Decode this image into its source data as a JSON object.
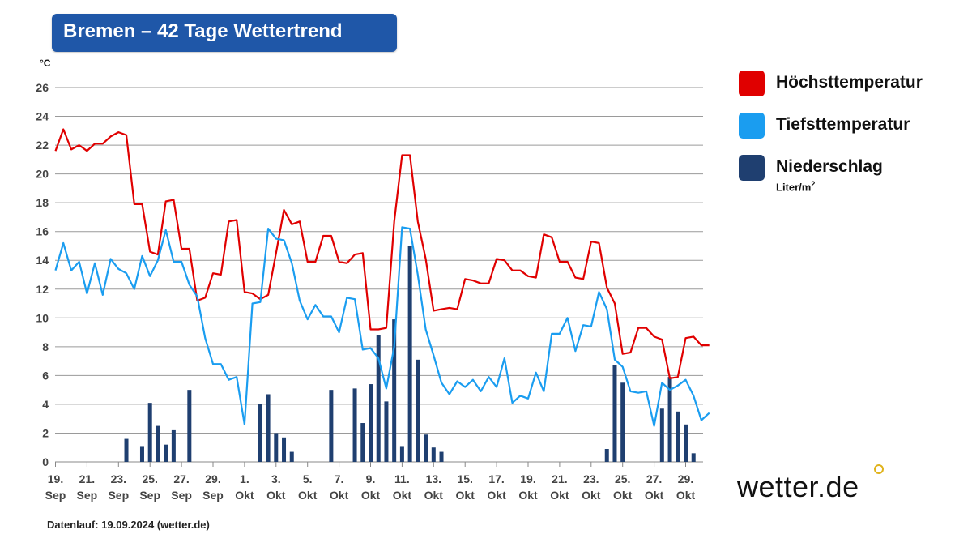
{
  "header": {
    "title": "Bremen – 42 Tage Wettertrend"
  },
  "footer": {
    "text": "Datenlauf: 19.09.2024 (wetter.de)"
  },
  "logo": {
    "text": "wetter.de"
  },
  "legend": {
    "items": [
      {
        "label": "Höchsttemperatur",
        "color": "#e00000"
      },
      {
        "label": "Tiefsttemperatur",
        "color": "#1a9df0"
      },
      {
        "label": "Niederschlag",
        "color": "#1f3f70",
        "unit": "Liter/m",
        "unit_sup": "2"
      }
    ]
  },
  "chart_data": {
    "type": "line",
    "yunit": "°C",
    "ylim": [
      0,
      26
    ],
    "yticks": [
      0,
      2,
      4,
      6,
      8,
      10,
      12,
      14,
      16,
      18,
      20,
      22,
      24,
      26
    ],
    "grid": true,
    "legend_position": "right",
    "x_start_date": "2024-09-19",
    "x_ticks": [
      {
        "day": 0,
        "top": "19.",
        "bottom": "Sep"
      },
      {
        "day": 2,
        "top": "21.",
        "bottom": "Sep"
      },
      {
        "day": 4,
        "top": "23.",
        "bottom": "Sep"
      },
      {
        "day": 6,
        "top": "25.",
        "bottom": "Sep"
      },
      {
        "day": 8,
        "top": "27.",
        "bottom": "Sep"
      },
      {
        "day": 10,
        "top": "29.",
        "bottom": "Sep"
      },
      {
        "day": 12,
        "top": "1.",
        "bottom": "Okt"
      },
      {
        "day": 14,
        "top": "3.",
        "bottom": "Okt"
      },
      {
        "day": 16,
        "top": "5.",
        "bottom": "Okt"
      },
      {
        "day": 18,
        "top": "7.",
        "bottom": "Okt"
      },
      {
        "day": 20,
        "top": "9.",
        "bottom": "Okt"
      },
      {
        "day": 22,
        "top": "11.",
        "bottom": "Okt"
      },
      {
        "day": 24,
        "top": "13.",
        "bottom": "Okt"
      },
      {
        "day": 26,
        "top": "15.",
        "bottom": "Okt"
      },
      {
        "day": 28,
        "top": "17.",
        "bottom": "Okt"
      },
      {
        "day": 30,
        "top": "19.",
        "bottom": "Okt"
      },
      {
        "day": 32,
        "top": "21.",
        "bottom": "Okt"
      },
      {
        "day": 34,
        "top": "23.",
        "bottom": "Okt"
      },
      {
        "day": 36,
        "top": "25.",
        "bottom": "Okt"
      },
      {
        "day": 38,
        "top": "27.",
        "bottom": "Okt"
      },
      {
        "day": 40,
        "top": "29.",
        "bottom": "Okt"
      }
    ],
    "series": [
      {
        "name": "Höchsttemperatur",
        "color": "#e00000",
        "points": [
          [
            0,
            21.6
          ],
          [
            0.5,
            23.1
          ],
          [
            1,
            21.7
          ],
          [
            1.5,
            22.0
          ],
          [
            2,
            21.6
          ],
          [
            2.5,
            22.1
          ],
          [
            3,
            22.1
          ],
          [
            3.5,
            22.6
          ],
          [
            4,
            22.9
          ],
          [
            4.5,
            22.7
          ],
          [
            5,
            17.9
          ],
          [
            5.5,
            17.9
          ],
          [
            6,
            14.6
          ],
          [
            6.5,
            14.4
          ],
          [
            7,
            18.1
          ],
          [
            7.5,
            18.2
          ],
          [
            8,
            14.8
          ],
          [
            8.5,
            14.8
          ],
          [
            9,
            11.2
          ],
          [
            9.5,
            11.4
          ],
          [
            10,
            13.1
          ],
          [
            10.5,
            13.0
          ],
          [
            11,
            16.7
          ],
          [
            11.5,
            16.8
          ],
          [
            12,
            11.8
          ],
          [
            12.5,
            11.7
          ],
          [
            13,
            11.3
          ],
          [
            13.5,
            11.6
          ],
          [
            14,
            14.5
          ],
          [
            14.5,
            17.5
          ],
          [
            15,
            16.5
          ],
          [
            15.5,
            16.7
          ],
          [
            16,
            13.9
          ],
          [
            16.5,
            13.9
          ],
          [
            17,
            15.7
          ],
          [
            17.5,
            15.7
          ],
          [
            18,
            13.9
          ],
          [
            18.5,
            13.8
          ],
          [
            19,
            14.4
          ],
          [
            19.5,
            14.5
          ],
          [
            20,
            9.2
          ],
          [
            20.5,
            9.2
          ],
          [
            21,
            9.3
          ],
          [
            21.5,
            16.7
          ],
          [
            22,
            21.3
          ],
          [
            22.5,
            21.3
          ],
          [
            23,
            16.7
          ],
          [
            23.5,
            14.1
          ],
          [
            24,
            10.5
          ],
          [
            24.5,
            10.6
          ],
          [
            25,
            10.7
          ],
          [
            25.5,
            10.6
          ],
          [
            26,
            12.7
          ],
          [
            26.5,
            12.6
          ],
          [
            27,
            12.4
          ],
          [
            27.5,
            12.4
          ],
          [
            28,
            14.1
          ],
          [
            28.5,
            14.0
          ],
          [
            29,
            13.3
          ],
          [
            29.5,
            13.3
          ],
          [
            30,
            12.9
          ],
          [
            30.5,
            12.8
          ],
          [
            31,
            15.8
          ],
          [
            31.5,
            15.6
          ],
          [
            32,
            13.9
          ],
          [
            32.5,
            13.9
          ],
          [
            33,
            12.8
          ],
          [
            33.5,
            12.7
          ],
          [
            34,
            15.3
          ],
          [
            34.5,
            15.2
          ],
          [
            35,
            12.1
          ],
          [
            35.5,
            11.0
          ],
          [
            36,
            7.5
          ],
          [
            36.5,
            7.6
          ],
          [
            37,
            9.3
          ],
          [
            37.5,
            9.3
          ],
          [
            38,
            8.7
          ],
          [
            38.5,
            8.5
          ],
          [
            39,
            5.8
          ],
          [
            39.5,
            5.9
          ],
          [
            40,
            8.6
          ],
          [
            40.5,
            8.7
          ],
          [
            41,
            8.1
          ],
          [
            41.5,
            8.1
          ]
        ]
      },
      {
        "name": "Tiefsttemperatur",
        "color": "#1a9df0",
        "points": [
          [
            0,
            13.3
          ],
          [
            0.5,
            15.2
          ],
          [
            1,
            13.3
          ],
          [
            1.5,
            13.9
          ],
          [
            2,
            11.7
          ],
          [
            2.5,
            13.8
          ],
          [
            3,
            11.6
          ],
          [
            3.5,
            14.1
          ],
          [
            4,
            13.4
          ],
          [
            4.5,
            13.1
          ],
          [
            5,
            12.0
          ],
          [
            5.5,
            14.3
          ],
          [
            6,
            12.9
          ],
          [
            6.5,
            14.0
          ],
          [
            7,
            16.1
          ],
          [
            7.5,
            13.9
          ],
          [
            8,
            13.9
          ],
          [
            8.5,
            12.3
          ],
          [
            9,
            11.5
          ],
          [
            9.5,
            8.6
          ],
          [
            10,
            6.8
          ],
          [
            10.5,
            6.8
          ],
          [
            11,
            5.7
          ],
          [
            11.5,
            5.9
          ],
          [
            12,
            2.6
          ],
          [
            12.5,
            11.0
          ],
          [
            13,
            11.1
          ],
          [
            13.5,
            16.2
          ],
          [
            14,
            15.5
          ],
          [
            14.5,
            15.4
          ],
          [
            15,
            13.8
          ],
          [
            15.5,
            11.2
          ],
          [
            16,
            9.9
          ],
          [
            16.5,
            10.9
          ],
          [
            17,
            10.1
          ],
          [
            17.5,
            10.1
          ],
          [
            18,
            9.0
          ],
          [
            18.5,
            11.4
          ],
          [
            19,
            11.3
          ],
          [
            19.5,
            7.8
          ],
          [
            20,
            7.9
          ],
          [
            20.5,
            7.2
          ],
          [
            21,
            5.1
          ],
          [
            21.5,
            8.0
          ],
          [
            22,
            16.3
          ],
          [
            22.5,
            16.2
          ],
          [
            23,
            13.0
          ],
          [
            23.5,
            9.2
          ],
          [
            24,
            7.4
          ],
          [
            24.5,
            5.5
          ],
          [
            25,
            4.7
          ],
          [
            25.5,
            5.6
          ],
          [
            26,
            5.2
          ],
          [
            26.5,
            5.7
          ],
          [
            27,
            4.9
          ],
          [
            27.5,
            5.9
          ],
          [
            28,
            5.2
          ],
          [
            28.5,
            7.2
          ],
          [
            29,
            4.1
          ],
          [
            29.5,
            4.6
          ],
          [
            30,
            4.4
          ],
          [
            30.5,
            6.2
          ],
          [
            31,
            4.9
          ],
          [
            31.5,
            8.9
          ],
          [
            32,
            8.9
          ],
          [
            32.5,
            10.0
          ],
          [
            33,
            7.7
          ],
          [
            33.5,
            9.5
          ],
          [
            34,
            9.4
          ],
          [
            34.5,
            11.8
          ],
          [
            35,
            10.6
          ],
          [
            35.5,
            7.1
          ],
          [
            36,
            6.6
          ],
          [
            36.5,
            4.9
          ],
          [
            37,
            4.8
          ],
          [
            37.5,
            4.9
          ],
          [
            38,
            2.5
          ],
          [
            38.5,
            5.5
          ],
          [
            39,
            5.0
          ],
          [
            39.5,
            5.3
          ],
          [
            40,
            5.7
          ],
          [
            40.5,
            4.6
          ],
          [
            41,
            2.9
          ],
          [
            41.5,
            3.4
          ]
        ]
      },
      {
        "name": "Niederschlag",
        "unit": "Liter/m²",
        "type": "bar",
        "color": "#1f3f70",
        "points": [
          [
            4.5,
            1.6
          ],
          [
            5.5,
            1.1
          ],
          [
            6,
            4.1
          ],
          [
            6.5,
            2.5
          ],
          [
            7,
            1.2
          ],
          [
            7.5,
            2.2
          ],
          [
            8.5,
            5.0
          ],
          [
            13,
            4.0
          ],
          [
            13.5,
            4.7
          ],
          [
            14,
            2.0
          ],
          [
            14.5,
            1.7
          ],
          [
            15,
            0.7
          ],
          [
            17.5,
            5.0
          ],
          [
            19,
            5.1
          ],
          [
            19.5,
            2.7
          ],
          [
            20,
            5.4
          ],
          [
            20.5,
            8.8
          ],
          [
            21,
            4.2
          ],
          [
            21.5,
            9.9
          ],
          [
            22,
            1.1
          ],
          [
            22.5,
            15.0
          ],
          [
            23,
            7.1
          ],
          [
            23.5,
            1.9
          ],
          [
            24,
            1.0
          ],
          [
            24.5,
            0.7
          ],
          [
            35,
            0.9
          ],
          [
            35.5,
            6.7
          ],
          [
            36,
            5.5
          ],
          [
            38.5,
            3.7
          ],
          [
            39,
            5.9
          ],
          [
            39.5,
            3.5
          ],
          [
            40,
            2.6
          ],
          [
            40.5,
            0.6
          ]
        ]
      }
    ]
  }
}
